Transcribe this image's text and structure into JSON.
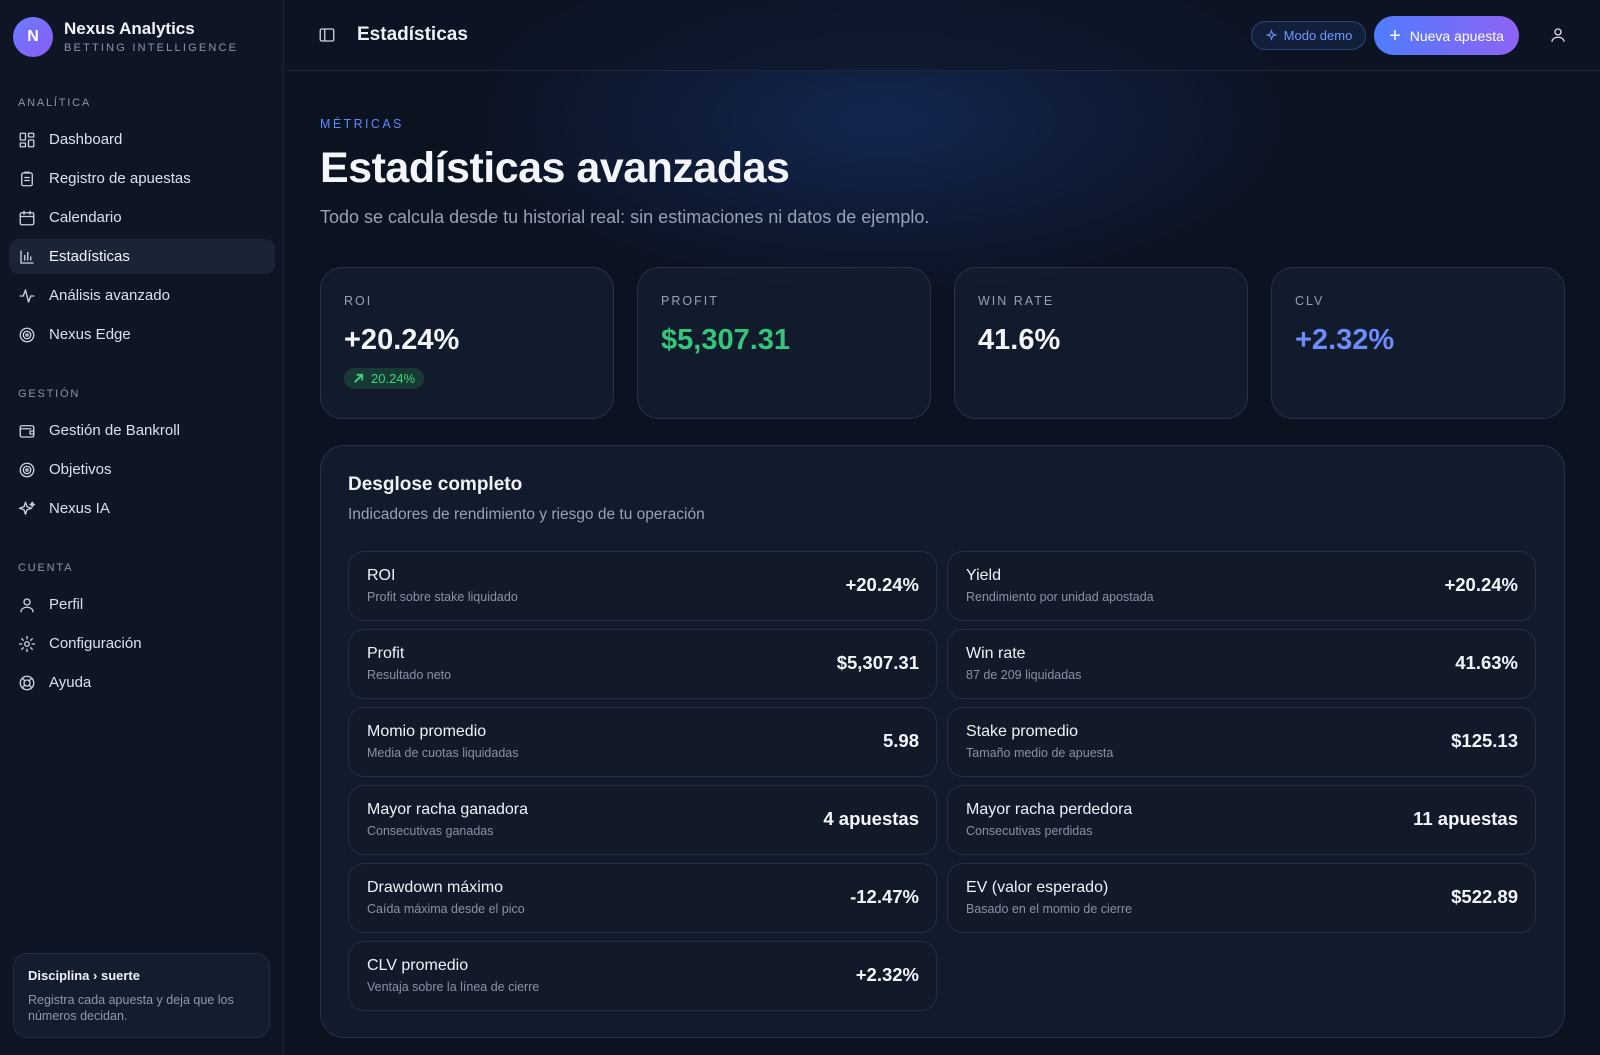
{
  "brand": {
    "initial": "N",
    "name": "Nexus Analytics",
    "subtitle": "BETTING INTELLIGENCE"
  },
  "sidebar": {
    "sections": [
      {
        "title": "ANALÍTICA",
        "items": [
          {
            "label": "Dashboard",
            "icon": "dashboard-icon"
          },
          {
            "label": "Registro de apuestas",
            "icon": "clipboard-icon"
          },
          {
            "label": "Calendario",
            "icon": "calendar-icon"
          },
          {
            "label": "Estadísticas",
            "icon": "bar-chart-icon",
            "active": true
          },
          {
            "label": "Análisis avanzado",
            "icon": "activity-icon"
          },
          {
            "label": "Nexus Edge",
            "icon": "target-icon"
          }
        ]
      },
      {
        "title": "GESTIÓN",
        "items": [
          {
            "label": "Gestión de Bankroll",
            "icon": "wallet-icon"
          },
          {
            "label": "Objetivos",
            "icon": "goal-icon"
          },
          {
            "label": "Nexus IA",
            "icon": "sparkles-icon"
          }
        ]
      },
      {
        "title": "CUENTA",
        "items": [
          {
            "label": "Perfil",
            "icon": "user-icon"
          },
          {
            "label": "Configuración",
            "icon": "gear-icon"
          },
          {
            "label": "Ayuda",
            "icon": "lifebuoy-icon"
          }
        ]
      }
    ],
    "tip": {
      "title": "Disciplina › suerte",
      "text": "Registra cada apuesta y deja que los números decidan."
    }
  },
  "topbar": {
    "title": "Estadísticas",
    "demo_label": "Modo demo",
    "new_bet_label": "Nueva apuesta"
  },
  "header": {
    "eyebrow": "MÉTRICAS",
    "title": "Estadísticas avanzadas",
    "subtitle": "Todo se calcula desde tu historial real: sin estimaciones ni datos de ejemplo."
  },
  "kpis": [
    {
      "label": "ROI",
      "value": "+20.24%",
      "color": "#f3f6fc",
      "chip": "20.24%"
    },
    {
      "label": "PROFIT",
      "value": "$5,307.31",
      "color": "#34c77b"
    },
    {
      "label": "WIN RATE",
      "value": "41.6%",
      "color": "#f3f6fc"
    },
    {
      "label": "CLV",
      "value": "+2.32%",
      "color": "#6d8dff"
    }
  ],
  "breakdown": {
    "title": "Desglose completo",
    "subtitle": "Indicadores de rendimiento y riesgo de tu operación",
    "metrics": [
      {
        "name": "ROI",
        "desc": "Profit sobre stake liquidado",
        "value": "+20.24%"
      },
      {
        "name": "Yield",
        "desc": "Rendimiento por unidad apostada",
        "value": "+20.24%"
      },
      {
        "name": "Profit",
        "desc": "Resultado neto",
        "value": "$5,307.31"
      },
      {
        "name": "Win rate",
        "desc": "87 de 209 liquidadas",
        "value": "41.63%"
      },
      {
        "name": "Momio promedio",
        "desc": "Media de cuotas liquidadas",
        "value": "5.98"
      },
      {
        "name": "Stake promedio",
        "desc": "Tamaño medio de apuesta",
        "value": "$125.13"
      },
      {
        "name": "Mayor racha ganadora",
        "desc": "Consecutivas ganadas",
        "value": "4 apuestas"
      },
      {
        "name": "Mayor racha perdedora",
        "desc": "Consecutivas perdidas",
        "value": "11 apuestas"
      },
      {
        "name": "Drawdown máximo",
        "desc": "Caída máxima desde el pico",
        "value": "-12.47%"
      },
      {
        "name": "EV (valor esperado)",
        "desc": "Basado en el momio de cierre",
        "value": "$522.89"
      },
      {
        "name": "CLV promedio",
        "desc": "Ventaja sobre la línea de cierre",
        "value": "+2.32%"
      }
    ]
  }
}
